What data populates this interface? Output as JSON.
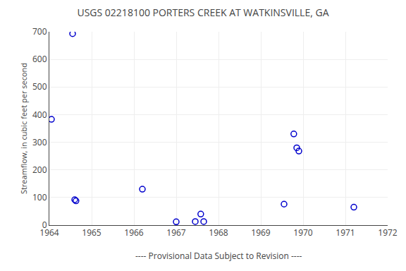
{
  "chart_data": {
    "type": "scatter",
    "title": "USGS 02218100 PORTERS CREEK AT WATKINSVILLE, GA",
    "ylabel": "Streamflow, in cubic feet per second",
    "annotations": [
      "---- Provisional Data Subject to Revision ----"
    ],
    "x": [
      1964.05,
      1964.55,
      1964.6,
      1964.63,
      1966.2,
      1967.0,
      1967.45,
      1967.58,
      1967.65,
      1969.55,
      1969.78,
      1969.85,
      1969.9,
      1971.2
    ],
    "values": [
      383,
      693,
      92,
      88,
      130,
      12,
      13,
      40,
      13,
      76,
      330,
      280,
      268,
      65
    ],
    "color": "#0000cc",
    "marker": "circle-open",
    "xlim": [
      1964,
      1972
    ],
    "xticks": [
      1964,
      1965,
      1966,
      1967,
      1968,
      1969,
      1970,
      1971,
      1972
    ],
    "ylim": [
      0,
      700
    ],
    "yticks": [
      0,
      100,
      200,
      300,
      400,
      500,
      600,
      700
    ],
    "grid": true
  }
}
